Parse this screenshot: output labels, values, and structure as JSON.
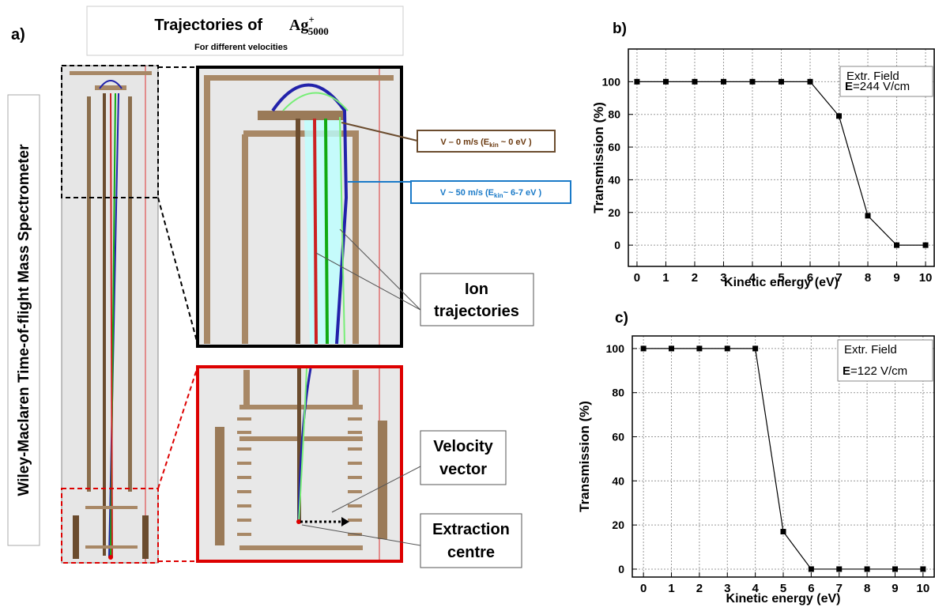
{
  "diagram": {
    "panel_label": "a)",
    "title": "Trajectories of",
    "ion_symbol": "Ag",
    "ion_charge": "+",
    "ion_size": "5000",
    "subtitle": "For different velocities",
    "side_label": "Wiley-Maclaren Time-of-flight Mass Spectrometer",
    "callouts": [
      {
        "start": "V – 0 m/s (E",
        "sub": "kin",
        "end": " ~ 0 eV )"
      },
      {
        "start": "V ~ 50 m/s (E",
        "sub": "kin",
        "end": "~ 6-7 eV )"
      }
    ],
    "labels": [
      [
        "Ion",
        "trajectories"
      ],
      [
        "Velocity",
        "vector"
      ],
      [
        "Extraction",
        "centre"
      ]
    ]
  },
  "chart_data": [
    {
      "type": "line",
      "panel_label": "b)",
      "xlabel": "Kinetic energy (eV)",
      "ylabel": "Transmission (%)",
      "x": [
        0,
        1,
        2,
        3,
        4,
        5,
        6,
        7,
        8,
        9,
        10
      ],
      "values": [
        100,
        100,
        100,
        100,
        100,
        100,
        100,
        79,
        18,
        0,
        0
      ],
      "color": "#000000",
      "xlim": [
        -0.3,
        10.3
      ],
      "ylim": [
        -13,
        120
      ],
      "xticks": [
        0,
        1,
        2,
        3,
        4,
        5,
        6,
        7,
        8,
        9,
        10
      ],
      "yticks": [
        0,
        20,
        40,
        60,
        80,
        100
      ],
      "grid": true,
      "annotation": {
        "line1": "Extr. Field",
        "bold": "E",
        "rest": "=244 V/cm"
      }
    },
    {
      "type": "line",
      "panel_label": "c)",
      "xlabel": "Kinetic energy (eV)",
      "ylabel": "Transmission (%)",
      "x": [
        0,
        1,
        2,
        3,
        4,
        5,
        6,
        7,
        8,
        9,
        10
      ],
      "values": [
        100,
        100,
        100,
        100,
        100,
        17,
        0,
        0,
        0,
        0,
        0
      ],
      "color": "#000000",
      "xlim": [
        -0.4,
        10.4
      ],
      "ylim": [
        -3.6,
        105.7
      ],
      "xticks": [
        0,
        1,
        2,
        3,
        4,
        5,
        6,
        7,
        8,
        9,
        10
      ],
      "yticks": [
        0,
        20,
        40,
        60,
        80,
        100
      ],
      "grid": true,
      "annotation": {
        "line1": "Extr. Field",
        "bold": "E",
        "rest": "=122 V/cm"
      }
    }
  ]
}
